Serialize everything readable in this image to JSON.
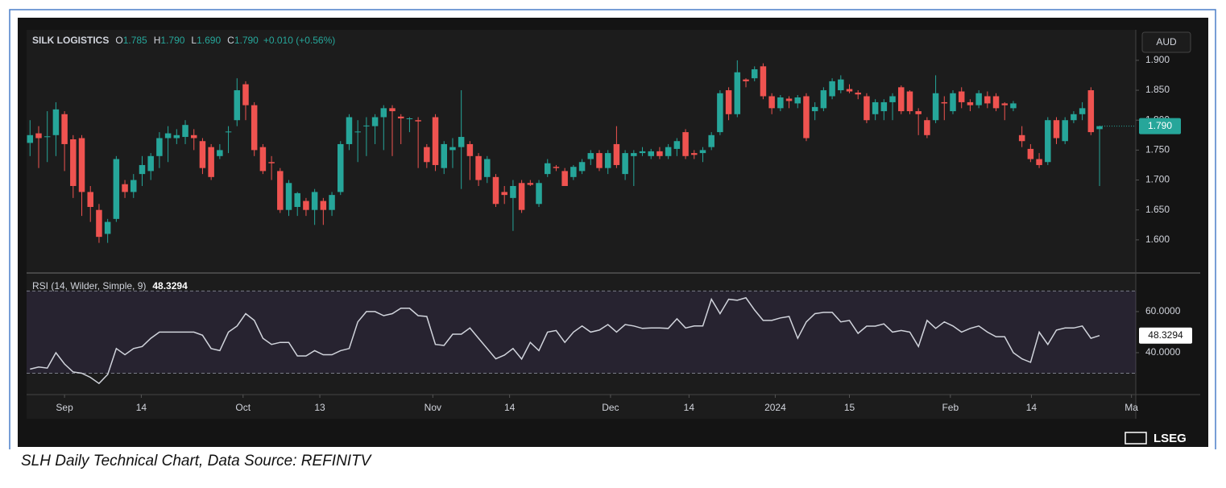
{
  "chart_data": [
    {
      "type": "candlestick",
      "title": "SILK LOGISTICS",
      "legend_fields": [
        {
          "label": "O",
          "value": "1.785"
        },
        {
          "label": "H",
          "value": "1.790"
        },
        {
          "label": "L",
          "value": "1.690"
        },
        {
          "label": "C",
          "value": "1.790"
        }
      ],
      "change": "+0.010 (+0.56%)",
      "currency": "AUD",
      "up_color": "#26a69a",
      "down_color": "#ef5350",
      "xlim": [
        -0.4,
        128.2
      ],
      "ylim": [
        1.546,
        1.951
      ],
      "yticks": [
        {
          "value": 1.6,
          "label": "1.600"
        },
        {
          "value": 1.65,
          "label": "1.650"
        },
        {
          "value": 1.7,
          "label": "1.700"
        },
        {
          "value": 1.75,
          "label": "1.750"
        },
        {
          "value": 1.8,
          "label": "1.800"
        },
        {
          "value": 1.85,
          "label": "1.850"
        },
        {
          "value": 1.9,
          "label": "1.900"
        }
      ],
      "last_price": {
        "value": 1.79,
        "label": "1.790"
      },
      "series": [
        {
          "name": "SILK LOGISTICS",
          "open": [
            1.762,
            1.778,
            1.772,
            1.775,
            1.81,
            1.768,
            1.77,
            1.68,
            1.65,
            1.61,
            1.635,
            1.693,
            1.68,
            1.71,
            1.715,
            1.74,
            1.77,
            1.77,
            1.772,
            1.775,
            1.765,
            1.755,
            1.74,
            1.78,
            1.8,
            1.86,
            1.825,
            1.755,
            1.73,
            1.715,
            1.65,
            1.655,
            1.665,
            1.65,
            1.665,
            1.65,
            1.68,
            1.76,
            1.78,
            1.79,
            1.79,
            1.805,
            1.82,
            1.806,
            1.802,
            1.8,
            1.755,
            1.805,
            1.72,
            1.75,
            1.755,
            1.76,
            1.74,
            1.705,
            1.705,
            1.68,
            1.67,
            1.695,
            1.695,
            1.66,
            1.71,
            1.722,
            1.715,
            1.705,
            1.715,
            1.735,
            1.745,
            1.72,
            1.76,
            1.71,
            1.74,
            1.745,
            1.74,
            1.748,
            1.74,
            1.752,
            1.78,
            1.745,
            1.745,
            1.755,
            1.78,
            1.85,
            1.81,
            1.868,
            1.87,
            1.89,
            1.84,
            1.82,
            1.836,
            1.828,
            1.84,
            1.815,
            1.82,
            1.84,
            1.85,
            1.852,
            1.846,
            1.84,
            1.81,
            1.815,
            1.83,
            1.855,
            1.848,
            1.815,
            1.8,
            1.8,
            1.83,
            1.815,
            1.848,
            1.83,
            1.825,
            1.84,
            1.84,
            1.828,
            1.82,
            1.775,
            1.752,
            1.735,
            1.73,
            1.8,
            1.765,
            1.8,
            1.81,
            1.85,
            1.785
          ],
          "high": [
            1.8,
            1.79,
            1.815,
            1.83,
            1.815,
            1.775,
            1.775,
            1.69,
            1.66,
            1.635,
            1.74,
            1.7,
            1.71,
            1.74,
            1.745,
            1.78,
            1.79,
            1.785,
            1.8,
            1.785,
            1.77,
            1.76,
            1.76,
            1.79,
            1.87,
            1.865,
            1.83,
            1.76,
            1.74,
            1.72,
            1.7,
            1.68,
            1.67,
            1.685,
            1.67,
            1.68,
            1.765,
            1.81,
            1.8,
            1.805,
            1.81,
            1.825,
            1.825,
            1.81,
            1.805,
            1.805,
            1.76,
            1.81,
            1.765,
            1.77,
            1.85,
            1.765,
            1.745,
            1.74,
            1.71,
            1.69,
            1.7,
            1.7,
            1.7,
            1.7,
            1.735,
            1.725,
            1.72,
            1.725,
            1.735,
            1.75,
            1.75,
            1.75,
            1.79,
            1.75,
            1.75,
            1.755,
            1.752,
            1.755,
            1.76,
            1.77,
            1.785,
            1.75,
            1.755,
            1.78,
            1.85,
            1.855,
            1.9,
            1.87,
            1.89,
            1.895,
            1.845,
            1.842,
            1.84,
            1.842,
            1.845,
            1.83,
            1.855,
            1.87,
            1.875,
            1.86,
            1.85,
            1.845,
            1.835,
            1.835,
            1.845,
            1.858,
            1.85,
            1.82,
            1.805,
            1.875,
            1.84,
            1.85,
            1.855,
            1.835,
            1.85,
            1.848,
            1.845,
            1.83,
            1.832,
            1.79,
            1.76,
            1.745,
            1.805,
            1.805,
            1.805,
            1.815,
            1.83,
            1.855,
            1.79
          ],
          "low": [
            1.74,
            1.72,
            1.73,
            1.74,
            1.715,
            1.67,
            1.64,
            1.63,
            1.595,
            1.595,
            1.63,
            1.67,
            1.67,
            1.69,
            1.7,
            1.72,
            1.73,
            1.76,
            1.76,
            1.75,
            1.71,
            1.7,
            1.735,
            1.745,
            1.79,
            1.8,
            1.74,
            1.71,
            1.7,
            1.645,
            1.64,
            1.64,
            1.64,
            1.625,
            1.625,
            1.64,
            1.675,
            1.75,
            1.73,
            1.74,
            1.76,
            1.75,
            1.74,
            1.76,
            1.78,
            1.72,
            1.72,
            1.715,
            1.71,
            1.72,
            1.685,
            1.7,
            1.69,
            1.695,
            1.655,
            1.66,
            1.615,
            1.645,
            1.69,
            1.655,
            1.705,
            1.715,
            1.69,
            1.7,
            1.71,
            1.725,
            1.715,
            1.71,
            1.72,
            1.7,
            1.69,
            1.74,
            1.735,
            1.735,
            1.735,
            1.74,
            1.735,
            1.735,
            1.73,
            1.75,
            1.775,
            1.8,
            1.805,
            1.855,
            1.865,
            1.835,
            1.81,
            1.815,
            1.82,
            1.82,
            1.765,
            1.8,
            1.815,
            1.835,
            1.845,
            1.845,
            1.835,
            1.795,
            1.8,
            1.8,
            1.8,
            1.81,
            1.81,
            1.775,
            1.77,
            1.795,
            1.8,
            1.81,
            1.82,
            1.815,
            1.82,
            1.82,
            1.815,
            1.8,
            1.815,
            1.755,
            1.73,
            1.72,
            1.725,
            1.76,
            1.76,
            1.795,
            1.8,
            1.775,
            1.69
          ],
          "close": [
            1.775,
            1.77,
            1.773,
            1.818,
            1.76,
            1.69,
            1.68,
            1.655,
            1.605,
            1.63,
            1.735,
            1.68,
            1.7,
            1.725,
            1.74,
            1.77,
            1.778,
            1.775,
            1.792,
            1.77,
            1.72,
            1.705,
            1.75,
            1.781,
            1.85,
            1.825,
            1.75,
            1.715,
            1.728,
            1.65,
            1.695,
            1.678,
            1.65,
            1.68,
            1.65,
            1.675,
            1.76,
            1.805,
            1.781,
            1.791,
            1.805,
            1.82,
            1.815,
            1.803,
            1.803,
            1.798,
            1.73,
            1.725,
            1.76,
            1.755,
            1.772,
            1.74,
            1.7,
            1.735,
            1.66,
            1.675,
            1.69,
            1.65,
            1.692,
            1.695,
            1.728,
            1.72,
            1.69,
            1.722,
            1.73,
            1.745,
            1.72,
            1.745,
            1.725,
            1.745,
            1.745,
            1.748,
            1.748,
            1.74,
            1.755,
            1.765,
            1.74,
            1.742,
            1.75,
            1.775,
            1.845,
            1.81,
            1.88,
            1.865,
            1.885,
            1.84,
            1.82,
            1.838,
            1.832,
            1.838,
            1.77,
            1.822,
            1.85,
            1.865,
            1.868,
            1.848,
            1.843,
            1.8,
            1.83,
            1.83,
            1.84,
            1.815,
            1.815,
            1.81,
            1.775,
            1.845,
            1.828,
            1.845,
            1.83,
            1.825,
            1.845,
            1.828,
            1.82,
            1.825,
            1.828,
            1.765,
            1.735,
            1.725,
            1.8,
            1.77,
            1.8,
            1.81,
            1.82,
            1.78,
            1.79
          ]
        }
      ]
    },
    {
      "type": "line",
      "title": "RSI (14, Wilder, Simple, 9)",
      "xlim": [
        -0.4,
        128.2
      ],
      "ylim": [
        19.6,
        78
      ],
      "yticks": [
        {
          "value": 40,
          "label": "40.0000"
        },
        {
          "value": 60,
          "label": "60.0000"
        }
      ],
      "bands": [
        30,
        70
      ],
      "band_color": "#7e57c2",
      "xticks": [
        {
          "value": 4.0,
          "label": "Sep"
        },
        {
          "value": 12.9,
          "label": "14"
        },
        {
          "value": 24.7,
          "label": "Oct"
        },
        {
          "value": 33.6,
          "label": "13"
        },
        {
          "value": 46.7,
          "label": "Nov"
        },
        {
          "value": 55.6,
          "label": "14"
        },
        {
          "value": 67.3,
          "label": "Dec"
        },
        {
          "value": 76.4,
          "label": "14"
        },
        {
          "value": 86.4,
          "label": "2024"
        },
        {
          "value": 95.0,
          "label": "15"
        },
        {
          "value": 106.7,
          "label": "Feb"
        },
        {
          "value": 116.1,
          "label": "14"
        },
        {
          "value": 127.7,
          "label": "Ma"
        }
      ],
      "series": [
        {
          "name": "RSI",
          "color": "#d1d4dc",
          "values": [
            32,
            33,
            32.5,
            40,
            34.5,
            30.6,
            30,
            28,
            25,
            29.4,
            42,
            39,
            42,
            43,
            47,
            50,
            50,
            50,
            50,
            50,
            48.5,
            42,
            41,
            50,
            53,
            59,
            55.7,
            47,
            44,
            45,
            45,
            38.4,
            38.4,
            41,
            39,
            39,
            41,
            42,
            55,
            60,
            60,
            58,
            59,
            61.6,
            61.6,
            58,
            57.6,
            44,
            43.5,
            49,
            49,
            52,
            47,
            42,
            37,
            38.8,
            42,
            36.9,
            45,
            41,
            50,
            50.8,
            45,
            50,
            53,
            50,
            51,
            53.7,
            50,
            53.7,
            53,
            51.8,
            52,
            52,
            51.8,
            56.5,
            52,
            53,
            53,
            66,
            59,
            66,
            65.5,
            66.7,
            60.8,
            55.7,
            55.7,
            56.9,
            57.6,
            47,
            55,
            59,
            59.6,
            59.6,
            55,
            55.7,
            49.4,
            52.9,
            52.9,
            54,
            50,
            50.8,
            50,
            43,
            55.7,
            51.8,
            55,
            53,
            50,
            51.8,
            53,
            50,
            47.8,
            47.8,
            40,
            37,
            35.3,
            50,
            44,
            51,
            52,
            52,
            53,
            47,
            48.3294
          ]
        }
      ]
    }
  ],
  "footer_logo": "LSEG",
  "caption": "SLH Daily Technical Chart, Data Source: REFINITV"
}
